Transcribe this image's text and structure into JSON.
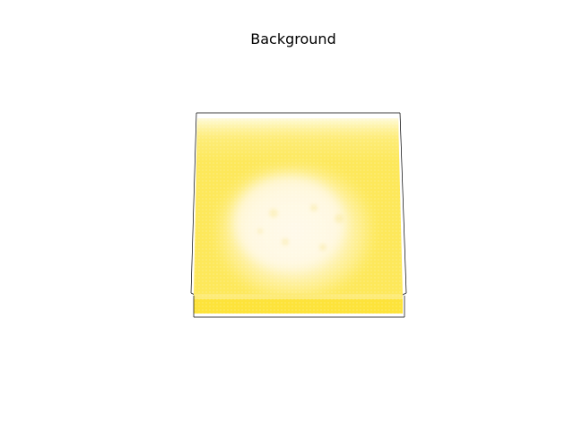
{
  "chart_data": {
    "type": "heatmap",
    "title": "Background",
    "xlabel": "",
    "ylabel": "",
    "zlabel": "",
    "grid": false,
    "colors": {
      "base": "#fde74c",
      "edge_band": "#fde33a",
      "top_fade": "#fef3a8",
      "blob_center": "#fff8dc",
      "blob_edge": "#fef0a0",
      "box_line": "#000000"
    }
  }
}
